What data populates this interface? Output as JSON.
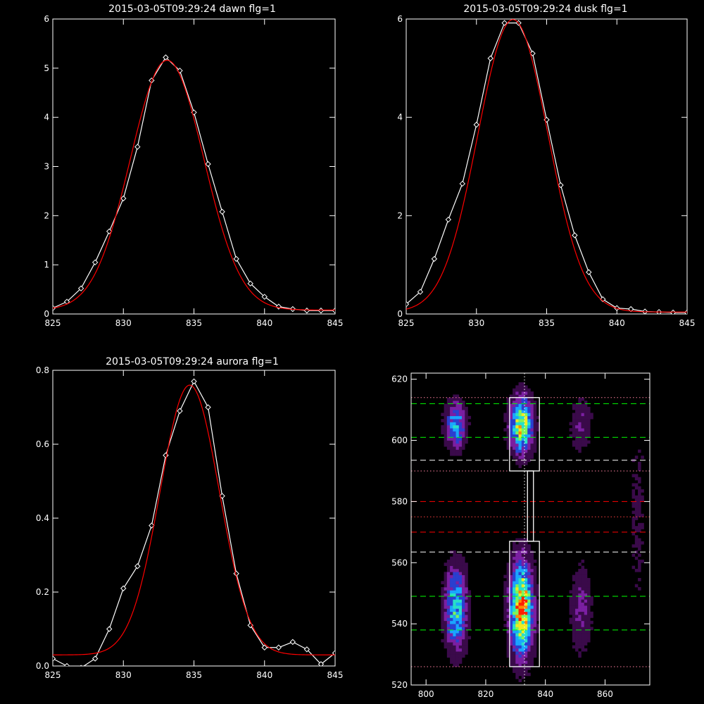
{
  "chart_data": [
    {
      "type": "line",
      "title": "2015-03-05T09:29:24 dawn flg=1",
      "xlim": [
        825,
        845
      ],
      "ylim": [
        0,
        6
      ],
      "xticks": [
        825,
        830,
        835,
        840,
        845
      ],
      "yticks": [
        0,
        1,
        2,
        3,
        4,
        5,
        6
      ],
      "series": [
        {
          "color": "#ffffff",
          "markers": "diamond",
          "x": [
            825,
            826,
            827,
            828,
            829,
            830,
            831,
            832,
            833,
            834,
            835,
            836,
            837,
            838,
            839,
            840,
            841,
            842,
            843,
            844,
            845
          ],
          "y": [
            0.12,
            0.25,
            0.52,
            1.05,
            1.68,
            2.35,
            3.4,
            4.75,
            5.22,
            4.95,
            4.1,
            3.05,
            2.08,
            1.12,
            0.62,
            0.35,
            0.15,
            0.1,
            0.07,
            0.07,
            0.07
          ]
        },
        {
          "color": "#ff0000",
          "model": "gaussian",
          "amplitude": 5.08,
          "center": 833.1,
          "sigma": 2.6,
          "offset": 0.08
        }
      ]
    },
    {
      "type": "line",
      "title": "2015-03-05T09:29:24 dusk flg=1",
      "xlim": [
        825,
        845
      ],
      "ylim": [
        0,
        6
      ],
      "xticks": [
        825,
        830,
        835,
        840,
        845
      ],
      "yticks": [
        0,
        2,
        4,
        6
      ],
      "series": [
        {
          "color": "#ffffff",
          "markers": "diamond",
          "x": [
            825,
            826,
            827,
            828,
            829,
            830,
            831,
            832,
            833,
            834,
            835,
            836,
            837,
            838,
            839,
            840,
            841,
            842,
            843,
            844,
            845
          ],
          "y": [
            0.2,
            0.45,
            1.12,
            1.92,
            2.65,
            3.85,
            5.2,
            5.92,
            5.92,
            5.3,
            3.95,
            2.62,
            1.6,
            0.85,
            0.3,
            0.12,
            0.1,
            0.05,
            0.04,
            0.03,
            0.03
          ]
        },
        {
          "color": "#ff0000",
          "model": "gaussian",
          "amplitude": 5.95,
          "center": 832.6,
          "sigma": 2.5,
          "offset": 0.04
        }
      ]
    },
    {
      "type": "line",
      "title": "2015-03-05T09:29:24 aurora flg=1",
      "xlim": [
        825,
        845
      ],
      "ylim": [
        0,
        0.8
      ],
      "xticks": [
        825,
        830,
        835,
        840,
        845
      ],
      "yticks": [
        0,
        0.2,
        0.4,
        0.6,
        0.8
      ],
      "ytick_labels": [
        "0.0",
        "0.2",
        "0.4",
        "0.6",
        "0.8"
      ],
      "series": [
        {
          "color": "#ffffff",
          "markers": "diamond",
          "x": [
            825,
            826,
            827,
            828,
            829,
            830,
            831,
            832,
            833,
            834,
            835,
            836,
            837,
            838,
            839,
            840,
            841,
            842,
            843,
            844,
            845
          ],
          "y": [
            0.02,
            0.0,
            -0.005,
            0.02,
            0.1,
            0.21,
            0.27,
            0.38,
            0.57,
            0.69,
            0.77,
            0.7,
            0.46,
            0.25,
            0.11,
            0.05,
            0.05,
            0.065,
            0.045,
            0.005,
            0.035
          ]
        },
        {
          "color": "#ff0000",
          "model": "gaussian",
          "amplitude": 0.73,
          "center": 834.7,
          "sigma": 2.1,
          "offset": 0.03
        }
      ]
    },
    {
      "type": "heatmap",
      "title": "",
      "xlim": [
        795,
        875
      ],
      "ylim": [
        520,
        622
      ],
      "xticks": [
        800,
        820,
        840,
        860
      ],
      "yticks": [
        520,
        540,
        560,
        580,
        600,
        620
      ],
      "colormap": [
        "#000000",
        "#3a0a4a",
        "#7b1fa2",
        "#2a3fd0",
        "#1aa6ff",
        "#28e0c8",
        "#7cf55a",
        "#f0ea20",
        "#ff8a00",
        "#ff2000"
      ],
      "blobs": [
        {
          "x": 810,
          "y": 605,
          "sx": 2.2,
          "sy": 5,
          "peak": 0.48
        },
        {
          "x": 810,
          "y": 545,
          "sx": 2.4,
          "sy": 9,
          "peak": 0.55
        },
        {
          "x": 832,
          "y": 605,
          "sx": 2.5,
          "sy": 6,
          "peak": 0.75
        },
        {
          "x": 832,
          "y": 545,
          "sx": 2.5,
          "sy": 10,
          "peak": 0.92
        },
        {
          "x": 852,
          "y": 605,
          "sx": 2.5,
          "sy": 6,
          "peak": 0.16
        },
        {
          "x": 852,
          "y": 545,
          "sx": 2.5,
          "sy": 10,
          "peak": 0.18
        },
        {
          "x": 871,
          "y": 575,
          "sx": 2.5,
          "sy": 30,
          "peak": 0.07
        }
      ],
      "vline": {
        "x": 833,
        "color": "#ffffff",
        "style": "dotted"
      },
      "hlines": [
        {
          "y": 612,
          "color": "#00ff00",
          "style": "dashed"
        },
        {
          "y": 601,
          "color": "#00ff00",
          "style": "dashed"
        },
        {
          "y": 593.5,
          "color": "#ffffff",
          "style": "dashed"
        },
        {
          "y": 580,
          "color": "#ff0000",
          "style": "dashed"
        },
        {
          "y": 570,
          "color": "#ff0000",
          "style": "dashed"
        },
        {
          "y": 563.5,
          "color": "#ffffff",
          "style": "dashed"
        },
        {
          "y": 549,
          "color": "#00ff00",
          "style": "dashed"
        },
        {
          "y": 538,
          "color": "#00ff00",
          "style": "dashed"
        },
        {
          "y": 614,
          "color": "#ff7f9f",
          "style": "dotted"
        },
        {
          "y": 590,
          "color": "#ff7f9f",
          "style": "dotted"
        },
        {
          "y": 575,
          "color": "#ff4040",
          "style": "dotted"
        },
        {
          "y": 526,
          "color": "#ff7f9f",
          "style": "dotted"
        }
      ],
      "boxes": [
        {
          "x0": 828,
          "x1": 838,
          "y0": 590,
          "y1": 614
        },
        {
          "x0": 834,
          "x1": 836,
          "y0": 567,
          "y1": 590
        },
        {
          "x0": 828,
          "x1": 838,
          "y0": 526,
          "y1": 567
        }
      ]
    }
  ]
}
